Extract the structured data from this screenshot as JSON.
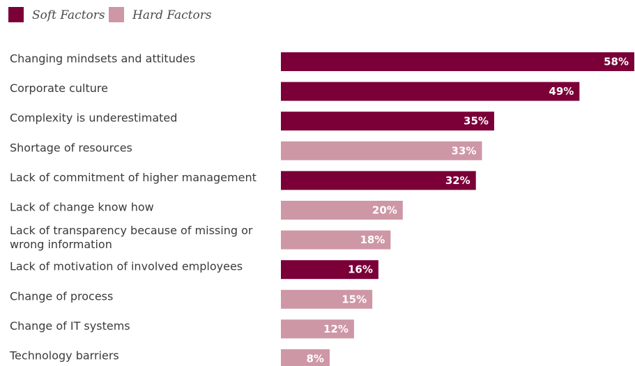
{
  "chart_data": {
    "type": "bar",
    "orientation": "horizontal",
    "legend": [
      {
        "name": "Soft Factors",
        "color": "#7a0037"
      },
      {
        "name": "Hard Factors",
        "color": "#cd97a6"
      }
    ],
    "legend_placement": "top-left",
    "grid": false,
    "xlim": [
      0,
      58
    ],
    "categories": [
      [
        "Changing mindsets and attitudes"
      ],
      [
        "Corporate culture"
      ],
      [
        "Complexity is underestimated"
      ],
      [
        "Shortage of resources"
      ],
      [
        "Lack of commitment of higher management"
      ],
      [
        "Lack of change know how"
      ],
      [
        "Lack of transparency because of missing or",
        "wrong information"
      ],
      [
        "Lack of motivation of involved employees"
      ],
      [
        "Change of process"
      ],
      [
        "Change of IT systems"
      ],
      [
        "Technology barriers"
      ]
    ],
    "values": [
      58,
      49,
      35,
      33,
      32,
      20,
      18,
      16,
      15,
      12,
      8
    ],
    "value_labels": [
      "58%",
      "49%",
      "35%",
      "33%",
      "32%",
      "20%",
      "18%",
      "16%",
      "15%",
      "12%",
      "8%"
    ],
    "factor": [
      "Soft Factors",
      "Soft Factors",
      "Soft Factors",
      "Hard Factors",
      "Soft Factors",
      "Hard Factors",
      "Hard Factors",
      "Soft Factors",
      "Hard Factors",
      "Hard Factors",
      "Hard Factors"
    ]
  }
}
